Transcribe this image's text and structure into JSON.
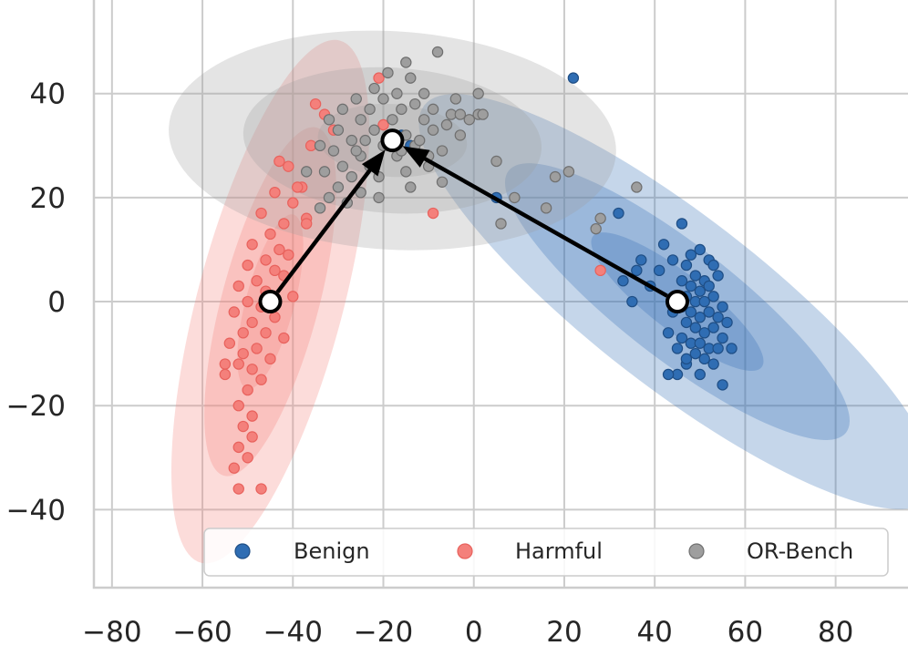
{
  "chart_data": {
    "type": "scatter",
    "title": "",
    "xlabel": "",
    "ylabel": "",
    "xlim": [
      -84,
      96
    ],
    "ylim": [
      -55,
      58
    ],
    "xticks": [
      -80,
      -60,
      -40,
      -20,
      0,
      20,
      40,
      60,
      80
    ],
    "yticks": [
      -40,
      -20,
      0,
      20,
      40
    ],
    "xtick_labels": [
      "−80",
      "−60",
      "−40",
      "−20",
      "0",
      "20",
      "40",
      "60",
      "80"
    ],
    "ytick_labels": [
      "−40",
      "−20",
      "0",
      "20",
      "40"
    ],
    "grid": true,
    "legend_position": "lower-right",
    "legend": [
      {
        "label": "Benign",
        "color": "#2f6db3"
      },
      {
        "label": "Harmful",
        "color": "#f4807b"
      },
      {
        "label": "OR-Bench",
        "color": "#9e9e9e"
      }
    ],
    "series": [
      {
        "name": "Benign",
        "color": "#2f6db3",
        "edge": "#1f4e85",
        "centroid": [
          45,
          0
        ],
        "ellipse": {
          "angle_deg": -34,
          "semi_axes_1sd": [
            22.5,
            5.7
          ]
        },
        "points": [
          [
            48,
            9
          ],
          [
            50,
            10
          ],
          [
            52,
            8
          ],
          [
            47,
            7
          ],
          [
            53,
            7
          ],
          [
            49,
            5
          ],
          [
            51,
            4
          ],
          [
            54,
            5
          ],
          [
            46,
            4
          ],
          [
            48,
            3
          ],
          [
            52,
            3
          ],
          [
            50,
            2
          ],
          [
            47,
            1
          ],
          [
            53,
            1
          ],
          [
            49,
            0
          ],
          [
            51,
            0
          ],
          [
            55,
            -1
          ],
          [
            46,
            -1
          ],
          [
            48,
            -2
          ],
          [
            52,
            -2
          ],
          [
            50,
            -3
          ],
          [
            54,
            -3
          ],
          [
            47,
            -4
          ],
          [
            49,
            -5
          ],
          [
            53,
            -5
          ],
          [
            51,
            -6
          ],
          [
            55,
            -7
          ],
          [
            46,
            -7
          ],
          [
            48,
            -8
          ],
          [
            50,
            -8
          ],
          [
            52,
            -9
          ],
          [
            54,
            -9
          ],
          [
            49,
            -10
          ],
          [
            51,
            -11
          ],
          [
            47,
            -12
          ],
          [
            53,
            -12
          ],
          [
            45,
            -14
          ],
          [
            50,
            -14
          ],
          [
            55,
            -16
          ],
          [
            43,
            -14
          ],
          [
            46,
            15
          ],
          [
            42,
            11
          ],
          [
            44,
            8
          ],
          [
            37,
            8
          ],
          [
            36,
            6
          ],
          [
            41,
            6
          ],
          [
            33,
            4
          ],
          [
            39,
            3
          ],
          [
            35,
            0
          ],
          [
            32,
            17
          ],
          [
            44,
            -2
          ],
          [
            43,
            -6
          ],
          [
            56,
            -4
          ],
          [
            57,
            -9
          ],
          [
            45,
            -9
          ],
          [
            47,
            -11
          ],
          [
            22,
            43
          ],
          [
            -16,
            32
          ],
          [
            -14,
            30
          ],
          [
            5,
            20
          ]
        ]
      },
      {
        "name": "Harmful",
        "color": "#f4807b",
        "edge": "#e8625d",
        "centroid": [
          -45,
          0
        ],
        "ellipse": {
          "angle_deg": 73,
          "semi_axes_1sd": [
            17.5,
            5.3
          ]
        },
        "points": [
          [
            -35,
            38
          ],
          [
            -33,
            36
          ],
          [
            -31,
            33
          ],
          [
            -36,
            30
          ],
          [
            -43,
            27
          ],
          [
            -41,
            26
          ],
          [
            -38,
            22
          ],
          [
            -44,
            21
          ],
          [
            -40,
            19
          ],
          [
            -47,
            17
          ],
          [
            -42,
            15
          ],
          [
            -37,
            16
          ],
          [
            -45,
            13
          ],
          [
            -49,
            11
          ],
          [
            -43,
            10
          ],
          [
            -41,
            9
          ],
          [
            -46,
            8
          ],
          [
            -50,
            7
          ],
          [
            -44,
            6
          ],
          [
            -42,
            5
          ],
          [
            -48,
            4
          ],
          [
            -52,
            3
          ],
          [
            -46,
            2
          ],
          [
            -40,
            1
          ],
          [
            -50,
            0
          ],
          [
            -47,
            -1
          ],
          [
            -53,
            -2
          ],
          [
            -44,
            -3
          ],
          [
            -49,
            -4
          ],
          [
            -51,
            -6
          ],
          [
            -46,
            -6
          ],
          [
            -42,
            -7
          ],
          [
            -54,
            -8
          ],
          [
            -48,
            -9
          ],
          [
            -51,
            -10
          ],
          [
            -45,
            -11
          ],
          [
            -52,
            -12
          ],
          [
            -49,
            -13
          ],
          [
            -55,
            -12
          ],
          [
            -47,
            -15
          ],
          [
            -50,
            -17
          ],
          [
            -52,
            -20
          ],
          [
            -49,
            -22
          ],
          [
            -51,
            -24
          ],
          [
            -49,
            -26
          ],
          [
            -52,
            -28
          ],
          [
            -50,
            -30
          ],
          [
            -53,
            -32
          ],
          [
            -52,
            -36
          ],
          [
            -47,
            -36
          ],
          [
            -39,
            22
          ],
          [
            -37,
            15
          ],
          [
            -55,
            -14
          ],
          [
            -17,
            31
          ],
          [
            28,
            6
          ],
          [
            -9,
            17
          ],
          [
            -21,
            43
          ],
          [
            -20,
            34
          ]
        ]
      },
      {
        "name": "OR-Bench",
        "color": "#9e9e9e",
        "edge": "#6f6f6f",
        "centroid": [
          -18,
          31
        ],
        "ellipse": {
          "angle_deg": -3,
          "semi_axes_1sd": [
            16.5,
            7.0
          ]
        },
        "points": [
          [
            -8,
            48
          ],
          [
            -15,
            46
          ],
          [
            -19,
            44
          ],
          [
            -14,
            43
          ],
          [
            -22,
            41
          ],
          [
            -17,
            40
          ],
          [
            -11,
            40
          ],
          [
            -26,
            39
          ],
          [
            -20,
            39
          ],
          [
            -13,
            38
          ],
          [
            -4,
            39
          ],
          [
            -29,
            37
          ],
          [
            -23,
            37
          ],
          [
            -16,
            37
          ],
          [
            -9,
            37
          ],
          [
            -5,
            36
          ],
          [
            1,
            36
          ],
          [
            -32,
            35
          ],
          [
            -25,
            35
          ],
          [
            -18,
            35
          ],
          [
            -11,
            35
          ],
          [
            -6,
            34
          ],
          [
            2,
            36
          ],
          [
            -30,
            33
          ],
          [
            -22,
            33
          ],
          [
            -15,
            32
          ],
          [
            -9,
            33
          ],
          [
            -3,
            32
          ],
          [
            -27,
            31
          ],
          [
            -20,
            30
          ],
          [
            -13,
            30
          ],
          [
            -7,
            29
          ],
          [
            -34,
            30
          ],
          [
            -31,
            29
          ],
          [
            -25,
            28
          ],
          [
            -17,
            28
          ],
          [
            -10,
            28
          ],
          [
            -29,
            26
          ],
          [
            -23,
            26
          ],
          [
            -15,
            25
          ],
          [
            -33,
            25
          ],
          [
            -27,
            24
          ],
          [
            -21,
            24
          ],
          [
            -30,
            22
          ],
          [
            -37,
            25
          ],
          [
            -32,
            20
          ],
          [
            -25,
            21
          ],
          [
            -34,
            18
          ],
          [
            -28,
            19
          ],
          [
            -21,
            20
          ],
          [
            -14,
            22
          ],
          [
            -7,
            23
          ],
          [
            -10,
            26
          ],
          [
            5,
            27
          ],
          [
            9,
            20
          ],
          [
            16,
            18
          ],
          [
            18,
            24
          ],
          [
            21,
            25
          ],
          [
            27,
            14
          ],
          [
            28,
            16
          ],
          [
            36,
            22
          ],
          [
            6,
            15
          ],
          [
            -3,
            36
          ],
          [
            1,
            40
          ],
          [
            -1,
            35
          ],
          [
            -19,
            30
          ],
          [
            -12,
            31
          ],
          [
            -16,
            29
          ],
          [
            -24,
            31
          ],
          [
            -26,
            29
          ]
        ]
      }
    ],
    "arrows": [
      {
        "from": [
          -45,
          0
        ],
        "to": [
          -18,
          31
        ]
      },
      {
        "from": [
          45,
          0
        ],
        "to": [
          -18,
          31
        ]
      }
    ]
  }
}
